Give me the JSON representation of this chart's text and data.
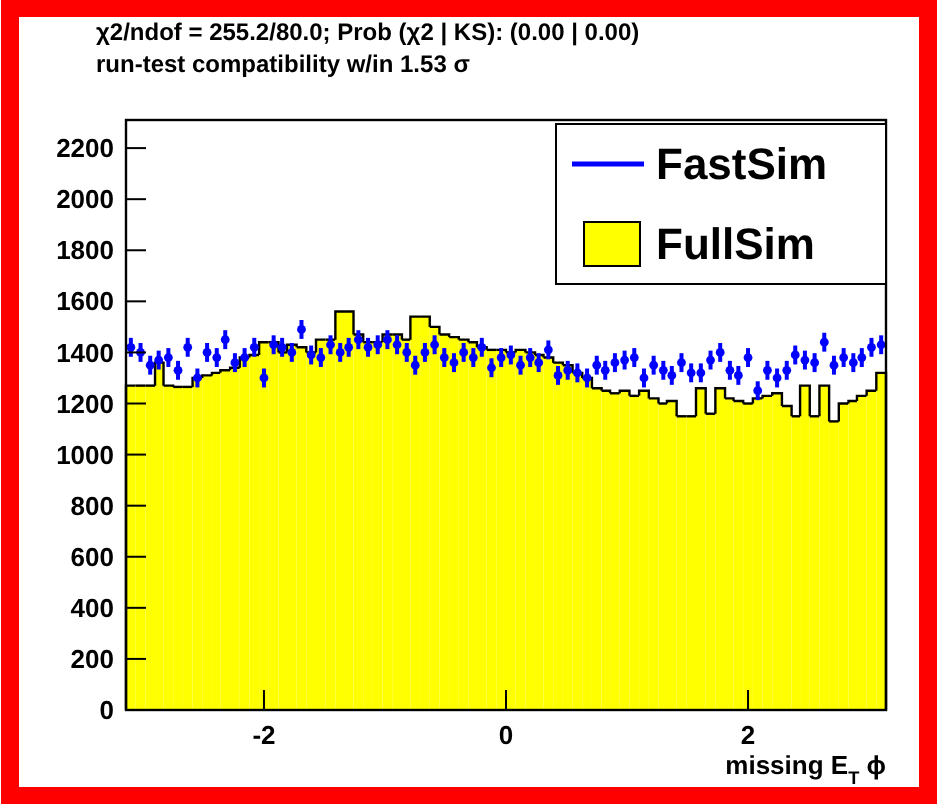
{
  "chart_data": {
    "type": "histogram",
    "title": "χ2/ndof = 255.2/80.0; Prob (χ2 | KS): (0.00 | 0.00)",
    "subtitle": "run-test compatibility w/in 1.53 σ",
    "xlabel": "missing E$_{T}$ ϕ",
    "bins": [
      -3.14,
      -3.06,
      -2.98,
      -2.9,
      -2.83,
      -2.75,
      -2.67,
      -2.59,
      -2.51,
      -2.43,
      -2.36,
      -2.28,
      -2.2,
      -2.12,
      -2.04,
      -1.96,
      -1.88,
      -1.81,
      -1.73,
      -1.65,
      -1.57,
      -1.49,
      -1.41,
      -1.33,
      -1.26,
      -1.18,
      -1.1,
      -1.02,
      -0.94,
      -0.86,
      -0.79,
      -0.71,
      -0.63,
      -0.55,
      -0.47,
      -0.39,
      -0.31,
      -0.24,
      -0.16,
      -0.08,
      0,
      0.08,
      0.16,
      0.24,
      0.31,
      0.39,
      0.47,
      0.55,
      0.63,
      0.71,
      0.79,
      0.86,
      0.94,
      1.02,
      1.1,
      1.18,
      1.26,
      1.33,
      1.41,
      1.49,
      1.57,
      1.65,
      1.73,
      1.81,
      1.88,
      1.96,
      2.04,
      2.12,
      2.2,
      2.28,
      2.36,
      2.43,
      2.51,
      2.59,
      2.67,
      2.75,
      2.83,
      2.9,
      2.98,
      3.06,
      3.14
    ],
    "series": [
      {
        "name": "FullSim",
        "color": "#ffff00",
        "values": [
          1270,
          1270,
          1270,
          1360,
          1270,
          1265,
          1265,
          1300,
          1310,
          1320,
          1330,
          1340,
          1380,
          1390,
          1440,
          1440,
          1400,
          1430,
          1420,
          1400,
          1450,
          1450,
          1560,
          1560,
          1470,
          1440,
          1440,
          1470,
          1470,
          1450,
          1540,
          1540,
          1500,
          1470,
          1460,
          1450,
          1440,
          1420,
          1410,
          1410,
          1400,
          1410,
          1400,
          1390,
          1380,
          1360,
          1350,
          1320,
          1300,
          1260,
          1250,
          1240,
          1250,
          1230,
          1250,
          1220,
          1200,
          1210,
          1150,
          1150,
          1260,
          1160,
          1260,
          1220,
          1210,
          1200,
          1220,
          1230,
          1240,
          1190,
          1150,
          1270,
          1150,
          1270,
          1130,
          1200,
          1210,
          1230,
          1250,
          1320
        ]
      },
      {
        "name": "FastSim",
        "type": "scatter",
        "color": "#0000ff",
        "marker": "circle",
        "x": [
          -3.1,
          -3.02,
          -2.94,
          -2.87,
          -2.79,
          -2.71,
          -2.63,
          -2.55,
          -2.47,
          -2.39,
          -2.32,
          -2.24,
          -2.16,
          -2.08,
          -2,
          -1.92,
          -1.85,
          -1.77,
          -1.69,
          -1.61,
          -1.53,
          -1.45,
          -1.37,
          -1.3,
          -1.22,
          -1.14,
          -1.06,
          -0.98,
          -0.9,
          -0.82,
          -0.75,
          -0.67,
          -0.59,
          -0.51,
          -0.43,
          -0.35,
          -0.27,
          -0.2,
          -0.12,
          -0.04,
          0.04,
          0.12,
          0.2,
          0.27,
          0.35,
          0.43,
          0.51,
          0.59,
          0.67,
          0.75,
          0.82,
          0.9,
          0.98,
          1.06,
          1.14,
          1.22,
          1.3,
          1.37,
          1.45,
          1.53,
          1.61,
          1.69,
          1.77,
          1.85,
          1.92,
          2,
          2.08,
          2.16,
          2.24,
          2.32,
          2.39,
          2.47,
          2.55,
          2.63,
          2.71,
          2.79,
          2.87,
          2.94,
          3.02,
          3.1
        ],
        "values": [
          1420,
          1400,
          1350,
          1370,
          1380,
          1330,
          1420,
          1300,
          1400,
          1380,
          1450,
          1360,
          1380,
          1420,
          1300,
          1430,
          1420,
          1400,
          1490,
          1390,
          1380,
          1430,
          1400,
          1420,
          1450,
          1420,
          1430,
          1450,
          1430,
          1400,
          1350,
          1400,
          1430,
          1380,
          1360,
          1400,
          1380,
          1420,
          1340,
          1380,
          1390,
          1350,
          1380,
          1360,
          1410,
          1310,
          1330,
          1320,
          1300,
          1350,
          1330,
          1360,
          1370,
          1380,
          1300,
          1350,
          1330,
          1310,
          1360,
          1320,
          1320,
          1370,
          1400,
          1330,
          1310,
          1380,
          1250,
          1330,
          1300,
          1330,
          1390,
          1370,
          1360,
          1440,
          1350,
          1380,
          1360,
          1380,
          1420,
          1430
        ],
        "errors": [
          37,
          37,
          37,
          37,
          37,
          37,
          37,
          37,
          37,
          37,
          37,
          37,
          37,
          37,
          37,
          37,
          37,
          37,
          37,
          37,
          37,
          37,
          37,
          37,
          37,
          37,
          37,
          37,
          37,
          37,
          37,
          37,
          37,
          37,
          37,
          37,
          37,
          37,
          37,
          37,
          37,
          37,
          37,
          37,
          37,
          37,
          37,
          37,
          37,
          37,
          37,
          37,
          37,
          37,
          37,
          37,
          37,
          37,
          37,
          37,
          37,
          37,
          37,
          37,
          37,
          37,
          37,
          37,
          37,
          37,
          37,
          37,
          37,
          37,
          37,
          37,
          37,
          37,
          37,
          37
        ]
      }
    ],
    "xlim": [
      -3.14,
      3.14
    ],
    "xticks": [
      -2,
      0,
      2
    ],
    "ylim": [
      0,
      2310
    ],
    "yticks": [
      0,
      200,
      400,
      600,
      800,
      1000,
      1200,
      1400,
      1600,
      1800,
      2000,
      2200
    ],
    "grid": false,
    "legend": "top right"
  }
}
